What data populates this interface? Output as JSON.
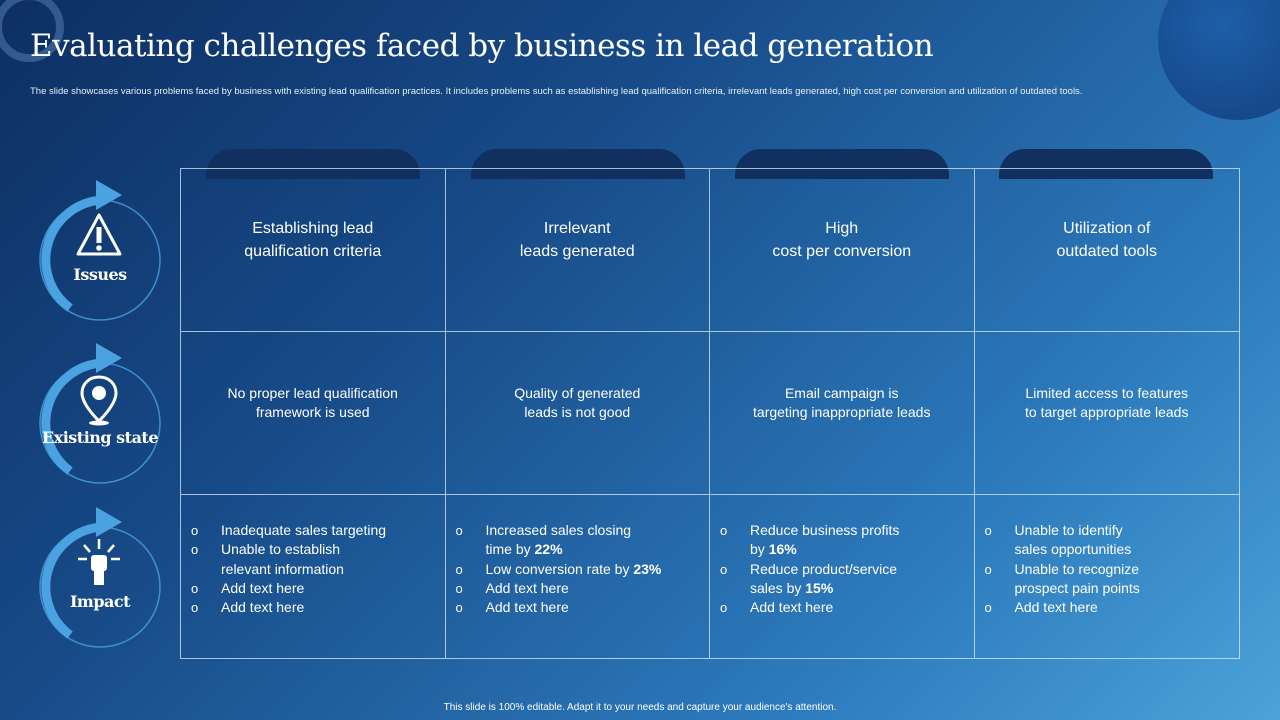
{
  "title": "Evaluating challenges faced by business in lead generation",
  "subtitle": "The slide showcases various problems faced by business with existing lead qualification practices. It includes problems such as establishing lead qualification criteria, irrelevant leads generated, high cost per conversion and utilization of outdated tools.",
  "rows": [
    {
      "label": "Issues",
      "icon": "warning-icon"
    },
    {
      "label": "Existing state",
      "icon": "location-pin-icon"
    },
    {
      "label": "Impact",
      "icon": "fist-icon"
    }
  ],
  "columns": [
    {
      "issue": [
        "Establishing lead",
        "qualification criteria"
      ],
      "state": [
        "No proper  lead qualification",
        "framework  is used"
      ],
      "impact": [
        [
          "Inadequate sales targeting"
        ],
        [
          "Unable to establish",
          "relevant information"
        ],
        [
          "Add text here"
        ],
        [
          "Add text here"
        ]
      ]
    },
    {
      "issue": [
        "Irrelevant",
        "leads generated"
      ],
      "state": [
        "Quality of generated",
        "leads is not good"
      ],
      "impact": [
        [
          "Increased sales closing",
          "time by 22%"
        ],
        [
          "Low conversion rate by 23%"
        ],
        [
          "Add text here"
        ],
        [
          "Add text here"
        ]
      ]
    },
    {
      "issue": [
        "High",
        "cost per conversion"
      ],
      "state": [
        "Email campaign is",
        "targeting inappropriate leads"
      ],
      "impact": [
        [
          "Reduce business profits",
          "by 16%"
        ],
        [
          "Reduce product/service",
          "sales by 15%"
        ],
        [
          "Add text here"
        ]
      ]
    },
    {
      "issue": [
        "Utilization of",
        "outdated tools"
      ],
      "state": [
        "Limited access to features",
        "to target appropriate leads"
      ],
      "impact": [
        [
          "Unable to identify",
          "sales opportunities"
        ],
        [
          "Unable to recognize",
          "prospect pain points"
        ],
        [
          "Add text here"
        ]
      ]
    }
  ],
  "footer": "This slide is 100% editable.  Adapt it to your needs and capture your audience's attention.",
  "colors": {
    "tab": "#12305f",
    "ring": "#4aa3e0",
    "background_dark": "#0d2f63",
    "background_light": "#4ba3d8"
  }
}
